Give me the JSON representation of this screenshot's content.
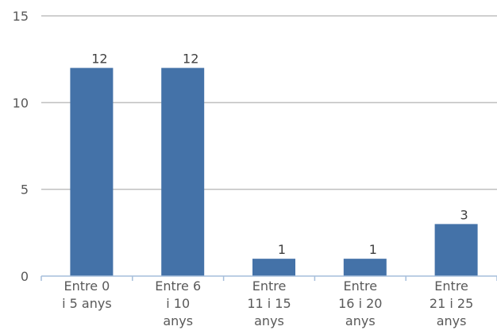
{
  "chart_data": {
    "type": "bar",
    "categories": [
      [
        "Entre 0",
        "i 5 anys"
      ],
      [
        "Entre 6",
        "i 10",
        "anys"
      ],
      [
        "Entre",
        "11 i 15",
        "anys"
      ],
      [
        "Entre",
        "16 i 20",
        "anys"
      ],
      [
        "Entre",
        "21 i 25",
        "anys"
      ]
    ],
    "values": [
      12,
      12,
      1,
      1,
      3
    ],
    "data_labels": [
      "12",
      "12",
      "1",
      "1",
      "3"
    ],
    "yticks": [
      "0",
      "5",
      "10",
      "15"
    ],
    "ylim": [
      0,
      15
    ],
    "grid": true,
    "bar_color": "#4472a8",
    "grid_color": "#bfbfbf",
    "axis_color": "#a6bedb",
    "text_color": "#595959"
  }
}
